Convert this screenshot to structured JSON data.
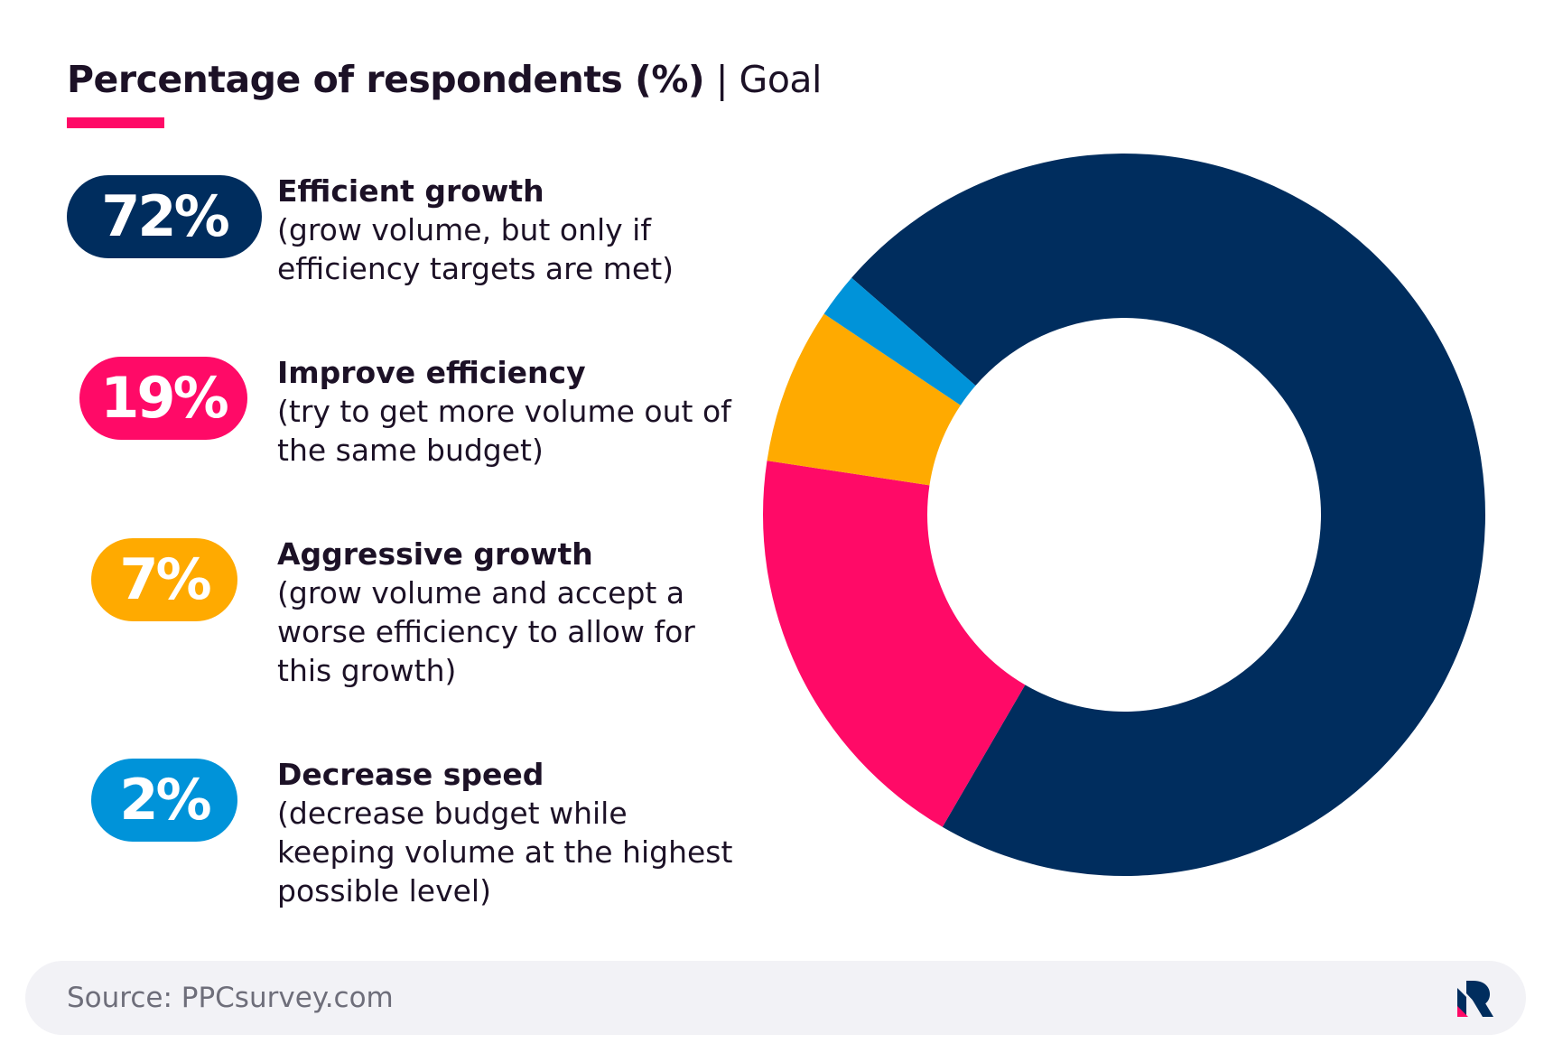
{
  "title": {
    "bold": "Percentage of respondents (%)",
    "light": " | Goal"
  },
  "colors": {
    "navy": "#002d5e",
    "pink": "#ff0a67",
    "orange": "#ffaa00",
    "blue": "#0093d9",
    "text": "#1c1126",
    "accent": "#ff0a67"
  },
  "legend": [
    {
      "pct": "72%",
      "label": "Efficient growth",
      "desc": "(grow volume, but only if efficiency targets are met)"
    },
    {
      "pct": "19%",
      "label": "Improve efficiency",
      "desc": "(try to get more volume out of the same budget)"
    },
    {
      "pct": "7%",
      "label": "Aggressive growth",
      "desc": "(grow volume and accept a worse efficiency to allow for this growth)"
    },
    {
      "pct": "2%",
      "label": "Decrease speed",
      "desc": "(decrease budget while keeping volume at the highest possible level)"
    }
  ],
  "chart_data": {
    "type": "pie",
    "title": "Percentage of respondents (%) | Goal",
    "categories": [
      "Efficient growth",
      "Improve efficiency",
      "Aggressive growth",
      "Decrease speed"
    ],
    "values": [
      72,
      19,
      7,
      2
    ],
    "colors": [
      "#002d5e",
      "#ff0a67",
      "#ffaa00",
      "#0093d9"
    ],
    "donut": true
  },
  "footer": {
    "source": "Source: PPCsurvey.com",
    "logo": "brand-logo-icon"
  }
}
